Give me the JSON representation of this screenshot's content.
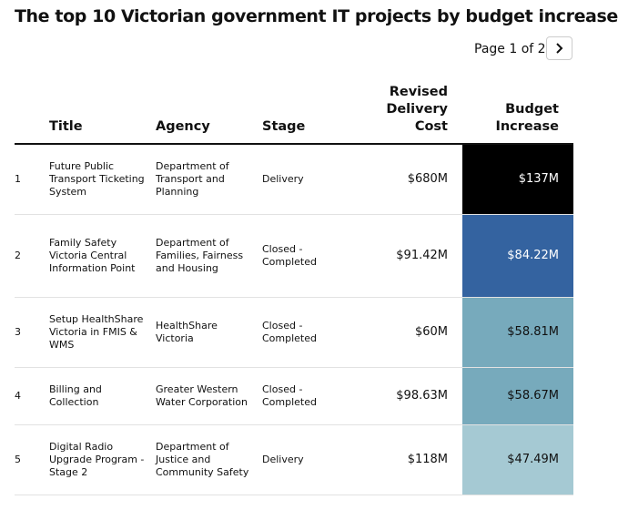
{
  "header": {
    "title": "The top 10 Victorian government IT projects by budget increase"
  },
  "pagination": {
    "label": "Page 1 of 2"
  },
  "table": {
    "columns": [
      "",
      "Title",
      "Agency",
      "Stage",
      "Revised Delivery Cost",
      "Budget Increase"
    ],
    "rows": [
      {
        "rank": "1",
        "title": "Future Public Transport Ticketing System",
        "agency": "Department of Transport and Planning",
        "stage": "Delivery",
        "revised_cost": "$680M",
        "budget_increase": "$137M",
        "cell_color": "#000000"
      },
      {
        "rank": "2",
        "title": "Family Safety Victoria Central Information Point",
        "agency": "Department of Families, Fairness and Housing",
        "stage": "Closed - Completed",
        "revised_cost": "$91.42M",
        "budget_increase": "$84.22M",
        "cell_color": "#3463a0"
      },
      {
        "rank": "3",
        "title": "Setup HealthShare Victoria in FMIS & WMS",
        "agency": "HealthShare Victoria",
        "stage": "Closed - Completed",
        "revised_cost": "$60M",
        "budget_increase": "$58.81M",
        "cell_color": "#77aabc"
      },
      {
        "rank": "4",
        "title": "Billing and Collection",
        "agency": "Greater Western Water Corporation",
        "stage": "Closed - Completed",
        "revised_cost": "$98.63M",
        "budget_increase": "$58.67M",
        "cell_color": "#77aabc"
      },
      {
        "rank": "5",
        "title": "Digital Radio Upgrade Program - Stage 2",
        "agency": "Department of Justice and Community Safety",
        "stage": "Delivery",
        "revised_cost": "$118M",
        "budget_increase": "$47.49M",
        "cell_color": "#a5c9d3"
      }
    ]
  }
}
